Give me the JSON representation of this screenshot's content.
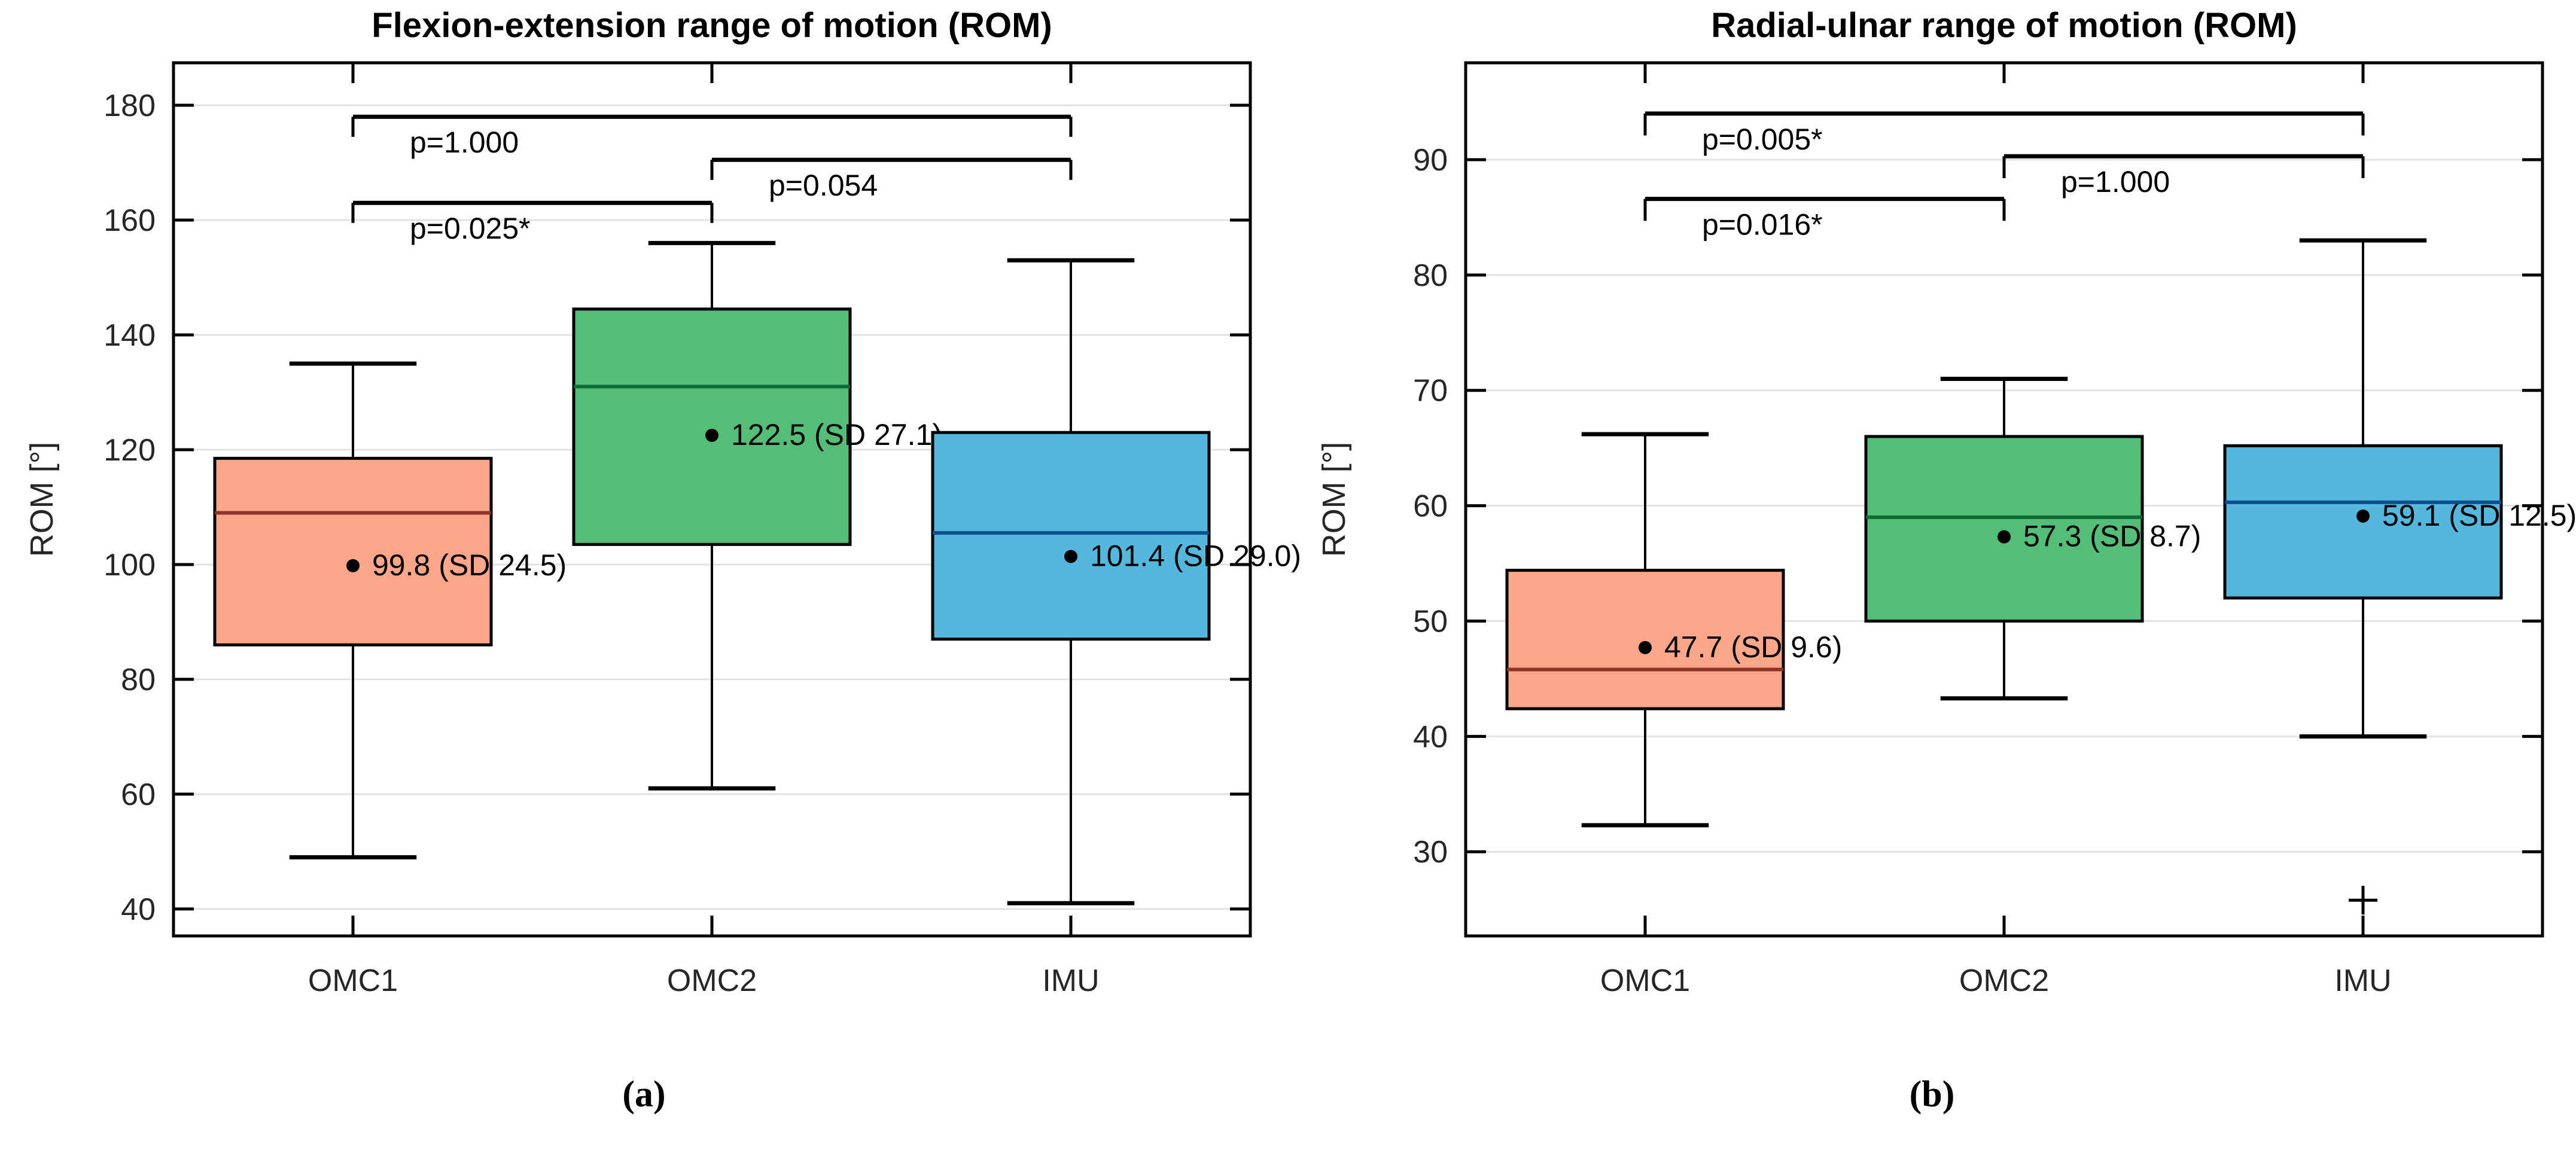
{
  "captions": {
    "a": "(a)",
    "b": "(b)"
  },
  "colors": {
    "background": "#ffffff",
    "axis": "#000000",
    "grid": "#e2e2e2",
    "tick_label": "#262626",
    "text": "#000000",
    "box_omc1_fill": "#FAA689",
    "box_omc2_fill": "#54BE78",
    "box_imu_fill": "#56B7DC",
    "median_omc1": "#8B3626",
    "median_omc2": "#0E6B33",
    "median_imu": "#0C4F8C"
  },
  "chart_data": [
    {
      "panel": "a",
      "type": "box",
      "title": "Flexion-extension range of motion (ROM)",
      "ylabel": "ROM  [°]",
      "categories": [
        "OMC1",
        "OMC2",
        "IMU"
      ],
      "ylim": [
        35.3,
        187.4
      ],
      "yticks": [
        40,
        60,
        80,
        100,
        120,
        140,
        160,
        180
      ],
      "grid": true,
      "boxes": [
        {
          "category": "OMC1",
          "fill": "box_omc1_fill",
          "median_color": "median_omc1",
          "whisker_low": 49,
          "q1": 86,
          "median": 109,
          "q3": 118.5,
          "whisker_high": 135,
          "mean": 99.8,
          "sd": 24.5,
          "mean_label": "99.8 (SD 24.5)",
          "outliers": []
        },
        {
          "category": "OMC2",
          "fill": "box_omc2_fill",
          "median_color": "median_omc2",
          "whisker_low": 61,
          "q1": 103.5,
          "median": 131,
          "q3": 144.5,
          "whisker_high": 156,
          "mean": 122.5,
          "sd": 27.1,
          "mean_label": "122.5 (SD 27.1)",
          "outliers": []
        },
        {
          "category": "IMU",
          "fill": "box_imu_fill",
          "median_color": "median_imu",
          "whisker_low": 41,
          "q1": 87,
          "median": 105.5,
          "q3": 123,
          "whisker_high": 153,
          "mean": 101.4,
          "sd": 29.0,
          "mean_label": "101.4 (SD 29.0)",
          "outliers": []
        }
      ],
      "significance": [
        {
          "pair": [
            0,
            2
          ],
          "label": "p=1.000",
          "bar_value": 178,
          "tick_drop": 3.5
        },
        {
          "pair": [
            1,
            2
          ],
          "label": "p=0.054",
          "bar_value": 170.5,
          "tick_drop": 3.5
        },
        {
          "pair": [
            0,
            1
          ],
          "label": "p=0.025*",
          "bar_value": 163,
          "tick_drop": 3.5
        }
      ]
    },
    {
      "panel": "b",
      "type": "box",
      "title": "Radial-ulnar range of motion (ROM)",
      "ylabel": "ROM  [°]",
      "categories": [
        "OMC1",
        "OMC2",
        "IMU"
      ],
      "ylim": [
        22.7,
        98.4
      ],
      "yticks": [
        30,
        40,
        50,
        60,
        70,
        80,
        90
      ],
      "grid": true,
      "boxes": [
        {
          "category": "OMC1",
          "fill": "box_omc1_fill",
          "median_color": "median_omc1",
          "whisker_low": 32.3,
          "q1": 42.4,
          "median": 45.8,
          "q3": 54.4,
          "whisker_high": 66.2,
          "mean": 47.7,
          "sd": 9.6,
          "mean_label": "47.7 (SD 9.6)",
          "outliers": []
        },
        {
          "category": "OMC2",
          "fill": "box_omc2_fill",
          "median_color": "median_omc2",
          "whisker_low": 43.3,
          "q1": 50,
          "median": 59,
          "q3": 66,
          "whisker_high": 71,
          "mean": 57.3,
          "sd": 8.7,
          "mean_label": "57.3 (SD 8.7)",
          "outliers": []
        },
        {
          "category": "IMU",
          "fill": "box_imu_fill",
          "median_color": "median_imu",
          "whisker_low": 40,
          "q1": 52,
          "median": 60.3,
          "q3": 65.2,
          "whisker_high": 83,
          "mean": 59.1,
          "sd": 12.5,
          "mean_label": "59.1 (SD 12.5)",
          "outliers": [
            25.8
          ]
        }
      ],
      "significance": [
        {
          "pair": [
            0,
            2
          ],
          "label": "p=0.005*",
          "bar_value": 94,
          "tick_drop": 1.9
        },
        {
          "pair": [
            1,
            2
          ],
          "label": "p=1.000",
          "bar_value": 90.3,
          "tick_drop": 1.9
        },
        {
          "pair": [
            0,
            1
          ],
          "label": "p=0.016*",
          "bar_value": 86.6,
          "tick_drop": 1.9
        }
      ]
    }
  ]
}
